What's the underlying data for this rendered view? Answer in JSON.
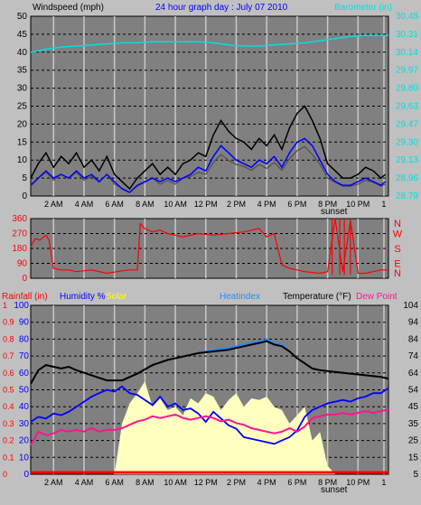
{
  "colors": {
    "bg": "#c0c0c0",
    "plot_bg": "#808080",
    "grid_v": "#c8c8c8",
    "grid_h": "#000000",
    "wind": "#000000",
    "gust": "#0000ff",
    "windlow": "#505050",
    "baro": "#00e0e0",
    "dir": "#ff0000",
    "rain": "#ff0000",
    "humidity": "#0000ff",
    "solar": "#ffffc0",
    "temp": "#000000",
    "heat": "#1e8cff",
    "dew": "#ff1493",
    "label_blue": "#0000ff",
    "label_cyan": "#00e0e0",
    "label_red": "#ff0000",
    "label_yellow": "#ffff00",
    "label_sky": "#1e8cff"
  },
  "chart_data": [
    {
      "type": "line",
      "title": "24 hour graph day : July 07 2010",
      "ylabel_left": "Windspeed (mph)",
      "ylabel_right": "Barometer (in)",
      "y_ticks_left": [
        "0",
        "5",
        "10",
        "15",
        "20",
        "25",
        "30",
        "35",
        "40",
        "45",
        "50"
      ],
      "y_ticks_right": [
        "28.79",
        "28.96",
        "29.13",
        "29.30",
        "29.47",
        "29.63",
        "29.80",
        "29.97",
        "30.14",
        "30.31",
        "30.48"
      ],
      "ylim_left": [
        0,
        50
      ],
      "ylim_right": [
        28.79,
        30.48
      ],
      "x_ticks": [
        "2 AM",
        "4 AM",
        "6 AM",
        "8 AM",
        "10 AM",
        "12 PM",
        "2 PM",
        "4 PM",
        "6 PM",
        "8 PM",
        "10 PM",
        "1"
      ],
      "annotation": "sunset",
      "xlim_hours": [
        0,
        23.5
      ],
      "series": [
        {
          "key": "wind",
          "hours": [
            0,
            0.5,
            1,
            1.5,
            2,
            2.5,
            3,
            3.5,
            4,
            4.5,
            5,
            5.5,
            6,
            6.5,
            7,
            7.5,
            8,
            8.5,
            9,
            9.5,
            10,
            10.5,
            11,
            11.5,
            12,
            12.5,
            13,
            13.5,
            14,
            14.5,
            15,
            15.5,
            16,
            16.5,
            17,
            17.5,
            18,
            18.5,
            19,
            19.5,
            20,
            20.5,
            21,
            21.5,
            22,
            22.5,
            23,
            23.3
          ],
          "values": [
            5,
            9,
            12,
            8,
            11,
            9,
            12,
            8,
            10,
            7,
            11,
            6,
            4,
            2,
            5,
            7,
            9,
            6,
            8,
            6,
            9,
            10,
            12,
            11,
            17,
            21,
            18,
            16,
            15,
            13,
            16,
            14,
            17,
            13,
            19,
            23,
            25,
            21,
            16,
            9,
            7,
            5,
            5,
            6,
            8,
            7,
            5,
            6
          ]
        },
        {
          "key": "gust",
          "hours": [
            0,
            0.5,
            1,
            1.5,
            2,
            2.5,
            3,
            3.5,
            4,
            4.5,
            5,
            5.5,
            6,
            6.5,
            7,
            7.5,
            8,
            8.5,
            9,
            9.5,
            10,
            10.5,
            11,
            11.5,
            12,
            12.5,
            13,
            13.5,
            14,
            14.5,
            15,
            15.5,
            16,
            16.5,
            17,
            17.5,
            18,
            18.5,
            19,
            19.5,
            20,
            20.5,
            21,
            21.5,
            22,
            22.5,
            23,
            23.3
          ],
          "values": [
            3,
            5,
            7,
            5,
            6,
            5,
            7,
            5,
            6,
            4,
            6,
            4,
            2,
            1,
            3,
            4,
            5,
            4,
            5,
            4,
            5,
            6,
            8,
            7,
            11,
            14,
            12,
            10,
            9,
            8,
            10,
            9,
            11,
            8,
            12,
            15,
            16,
            14,
            10,
            6,
            4,
            3,
            3,
            4,
            5,
            4,
            3,
            4
          ]
        },
        {
          "key": "baro",
          "hours": [
            0,
            1,
            2,
            3,
            4,
            5,
            6,
            7,
            8,
            9,
            10,
            11,
            12,
            13,
            14,
            15,
            16,
            17,
            18,
            19,
            20,
            21,
            22,
            23,
            23.5
          ],
          "values": [
            30.14,
            30.17,
            30.19,
            30.2,
            30.21,
            30.22,
            30.23,
            30.23,
            30.24,
            30.24,
            30.24,
            30.24,
            30.23,
            30.21,
            30.2,
            30.2,
            30.21,
            30.22,
            30.23,
            30.25,
            30.27,
            30.29,
            30.3,
            30.3,
            30.3
          ]
        }
      ]
    },
    {
      "type": "line",
      "ylabel_right": [
        "N",
        "W",
        "S",
        "E",
        "N"
      ],
      "y_ticks_left": [
        "0",
        "90",
        "180",
        "270",
        "360"
      ],
      "ylim": [
        0,
        360
      ],
      "series": [
        {
          "key": "dir",
          "hours": [
            0,
            0.3,
            0.6,
            1,
            1.2,
            1.5,
            2,
            2.5,
            3,
            4,
            5,
            6,
            6.5,
            7,
            7.2,
            7.5,
            8,
            8.5,
            9,
            10,
            11,
            12,
            13,
            14,
            15,
            15.5,
            16,
            16.5,
            17,
            17.5,
            18,
            19,
            19.5,
            20,
            20.5,
            21,
            21.5,
            22,
            22.5,
            23,
            23.5
          ],
          "values": [
            190,
            240,
            230,
            260,
            230,
            60,
            50,
            50,
            40,
            50,
            30,
            45,
            50,
            50,
            330,
            300,
            280,
            290,
            270,
            250,
            270,
            260,
            270,
            280,
            300,
            250,
            270,
            80,
            60,
            50,
            40,
            30,
            40,
            360,
            40,
            350,
            30,
            30,
            40,
            50,
            50
          ]
        }
      ]
    },
    {
      "type": "line",
      "ylabel_left": "Rainfall (in)",
      "ylabel_humidity": "Humidity %",
      "ylabel_solar": "Solar",
      "ylabel_heat": "Heatindex",
      "ylabel_temp": "Temperature (°F)",
      "ylabel_dew": "Dew Point",
      "y_ticks_rain": [
        "0",
        "0.1",
        "0.2",
        "0.3",
        "0.4",
        "0.5",
        "0.6",
        "0.7",
        "0.8",
        "0.9",
        "1"
      ],
      "y_ticks_left": [
        "0",
        "10",
        "20",
        "30",
        "40",
        "50",
        "60",
        "70",
        "80",
        "90",
        "100"
      ],
      "y_ticks_right": [
        "5",
        "15",
        "25",
        "35",
        "45",
        "54",
        "64",
        "74",
        "84",
        "94",
        "104"
      ],
      "ylim_left": [
        0,
        100
      ],
      "ylim_right": [
        5,
        104
      ],
      "x_ticks": [
        "2 AM",
        "4 AM",
        "6 AM",
        "8 AM",
        "10 AM",
        "12 PM",
        "2 PM",
        "4 PM",
        "6 PM",
        "8 PM",
        "10 PM",
        "1"
      ],
      "annotation": "sunset",
      "series": [
        {
          "key": "temp",
          "hours": [
            0,
            0.5,
            1,
            1.5,
            2,
            2.5,
            3,
            4,
            5,
            6,
            7,
            8,
            9,
            10,
            11,
            12,
            13,
            14,
            15,
            15.5,
            16,
            16.5,
            17,
            17.5,
            18,
            18.5,
            19,
            20,
            21,
            22,
            23,
            23.5
          ],
          "values": [
            58,
            66,
            69,
            68,
            67,
            68,
            66,
            63,
            60,
            60,
            64,
            69,
            72,
            74,
            76,
            77,
            78,
            80,
            82,
            83,
            81,
            80,
            77,
            73,
            70,
            67,
            66,
            65,
            64,
            63,
            62,
            61
          ]
        },
        {
          "key": "heat",
          "hours": [
            0,
            0.5,
            1,
            1.5,
            2,
            2.5,
            3,
            4,
            5,
            6,
            7,
            8,
            9,
            10,
            11,
            12,
            13,
            14,
            15,
            15.5,
            16,
            16.5,
            17,
            17.5,
            18,
            18.5,
            19,
            20,
            21,
            22,
            23,
            23.5
          ],
          "values": [
            58,
            66,
            69,
            68,
            67,
            68,
            66,
            63,
            60,
            60,
            64,
            69,
            72,
            74,
            76,
            78,
            79,
            81,
            83,
            84,
            82,
            81,
            77,
            73,
            70,
            67,
            66,
            65,
            64,
            63,
            62,
            61
          ]
        },
        {
          "key": "humidity",
          "hours": [
            0,
            0.5,
            1,
            1.5,
            2,
            2.5,
            3,
            3.5,
            4,
            4.5,
            5,
            5.5,
            6,
            6.5,
            7,
            7.5,
            8,
            8.5,
            9,
            9.5,
            10,
            10.5,
            11,
            11.5,
            12,
            12.5,
            13,
            13.5,
            14,
            14.5,
            15,
            15.5,
            16,
            16.5,
            17,
            17.5,
            18,
            18.5,
            19,
            19.5,
            20,
            20.5,
            21,
            21.5,
            22,
            22.5,
            23,
            23.5
          ],
          "values": [
            31,
            34,
            33,
            36,
            35,
            37,
            40,
            43,
            46,
            48,
            50,
            49,
            52,
            48,
            47,
            44,
            41,
            46,
            40,
            42,
            38,
            39,
            36,
            31,
            37,
            33,
            29,
            27,
            22,
            21,
            20,
            19,
            18,
            20,
            22,
            26,
            34,
            38,
            40,
            42,
            43,
            44,
            43,
            45,
            46,
            48,
            48,
            51
          ]
        },
        {
          "key": "dew",
          "hours": [
            0,
            0.5,
            1,
            1.5,
            2,
            2.5,
            3,
            3.5,
            4,
            4.5,
            5,
            5.5,
            6,
            6.5,
            7,
            7.5,
            8,
            8.5,
            9,
            9.5,
            10,
            10.5,
            11,
            11.5,
            12,
            12.5,
            13,
            13.5,
            14,
            14.5,
            15,
            15.5,
            16,
            16.5,
            17,
            17.5,
            18,
            18.5,
            19,
            19.5,
            20,
            20.5,
            21,
            21.5,
            22,
            22.5,
            23,
            23.5
          ],
          "values": [
            22,
            30,
            28,
            29,
            31,
            30,
            31,
            30,
            32,
            30,
            31,
            31,
            32,
            34,
            36,
            37,
            39,
            38,
            39,
            40,
            38,
            37,
            38,
            39,
            38,
            36,
            37,
            35,
            34,
            32,
            31,
            30,
            29,
            30,
            32,
            30,
            33,
            38,
            39,
            40,
            40,
            41,
            40,
            41,
            42,
            41,
            42,
            43
          ]
        },
        {
          "key": "solar",
          "hours": [
            5.5,
            6,
            6.5,
            7,
            7.5,
            8,
            8.5,
            9,
            9.5,
            10,
            10.5,
            11,
            11.5,
            12,
            12.5,
            13,
            13.5,
            14,
            14.5,
            15,
            15.5,
            16,
            16.5,
            17,
            17.5,
            18,
            18.5,
            19,
            19.5,
            20
          ],
          "values": [
            0,
            30,
            42,
            48,
            55,
            40,
            45,
            38,
            40,
            35,
            45,
            42,
            48,
            46,
            38,
            44,
            48,
            40,
            45,
            44,
            46,
            40,
            38,
            30,
            35,
            40,
            20,
            25,
            5,
            0
          ]
        },
        {
          "key": "rain",
          "hours": [
            0,
            23.5
          ],
          "values": [
            0,
            0
          ]
        }
      ]
    }
  ]
}
